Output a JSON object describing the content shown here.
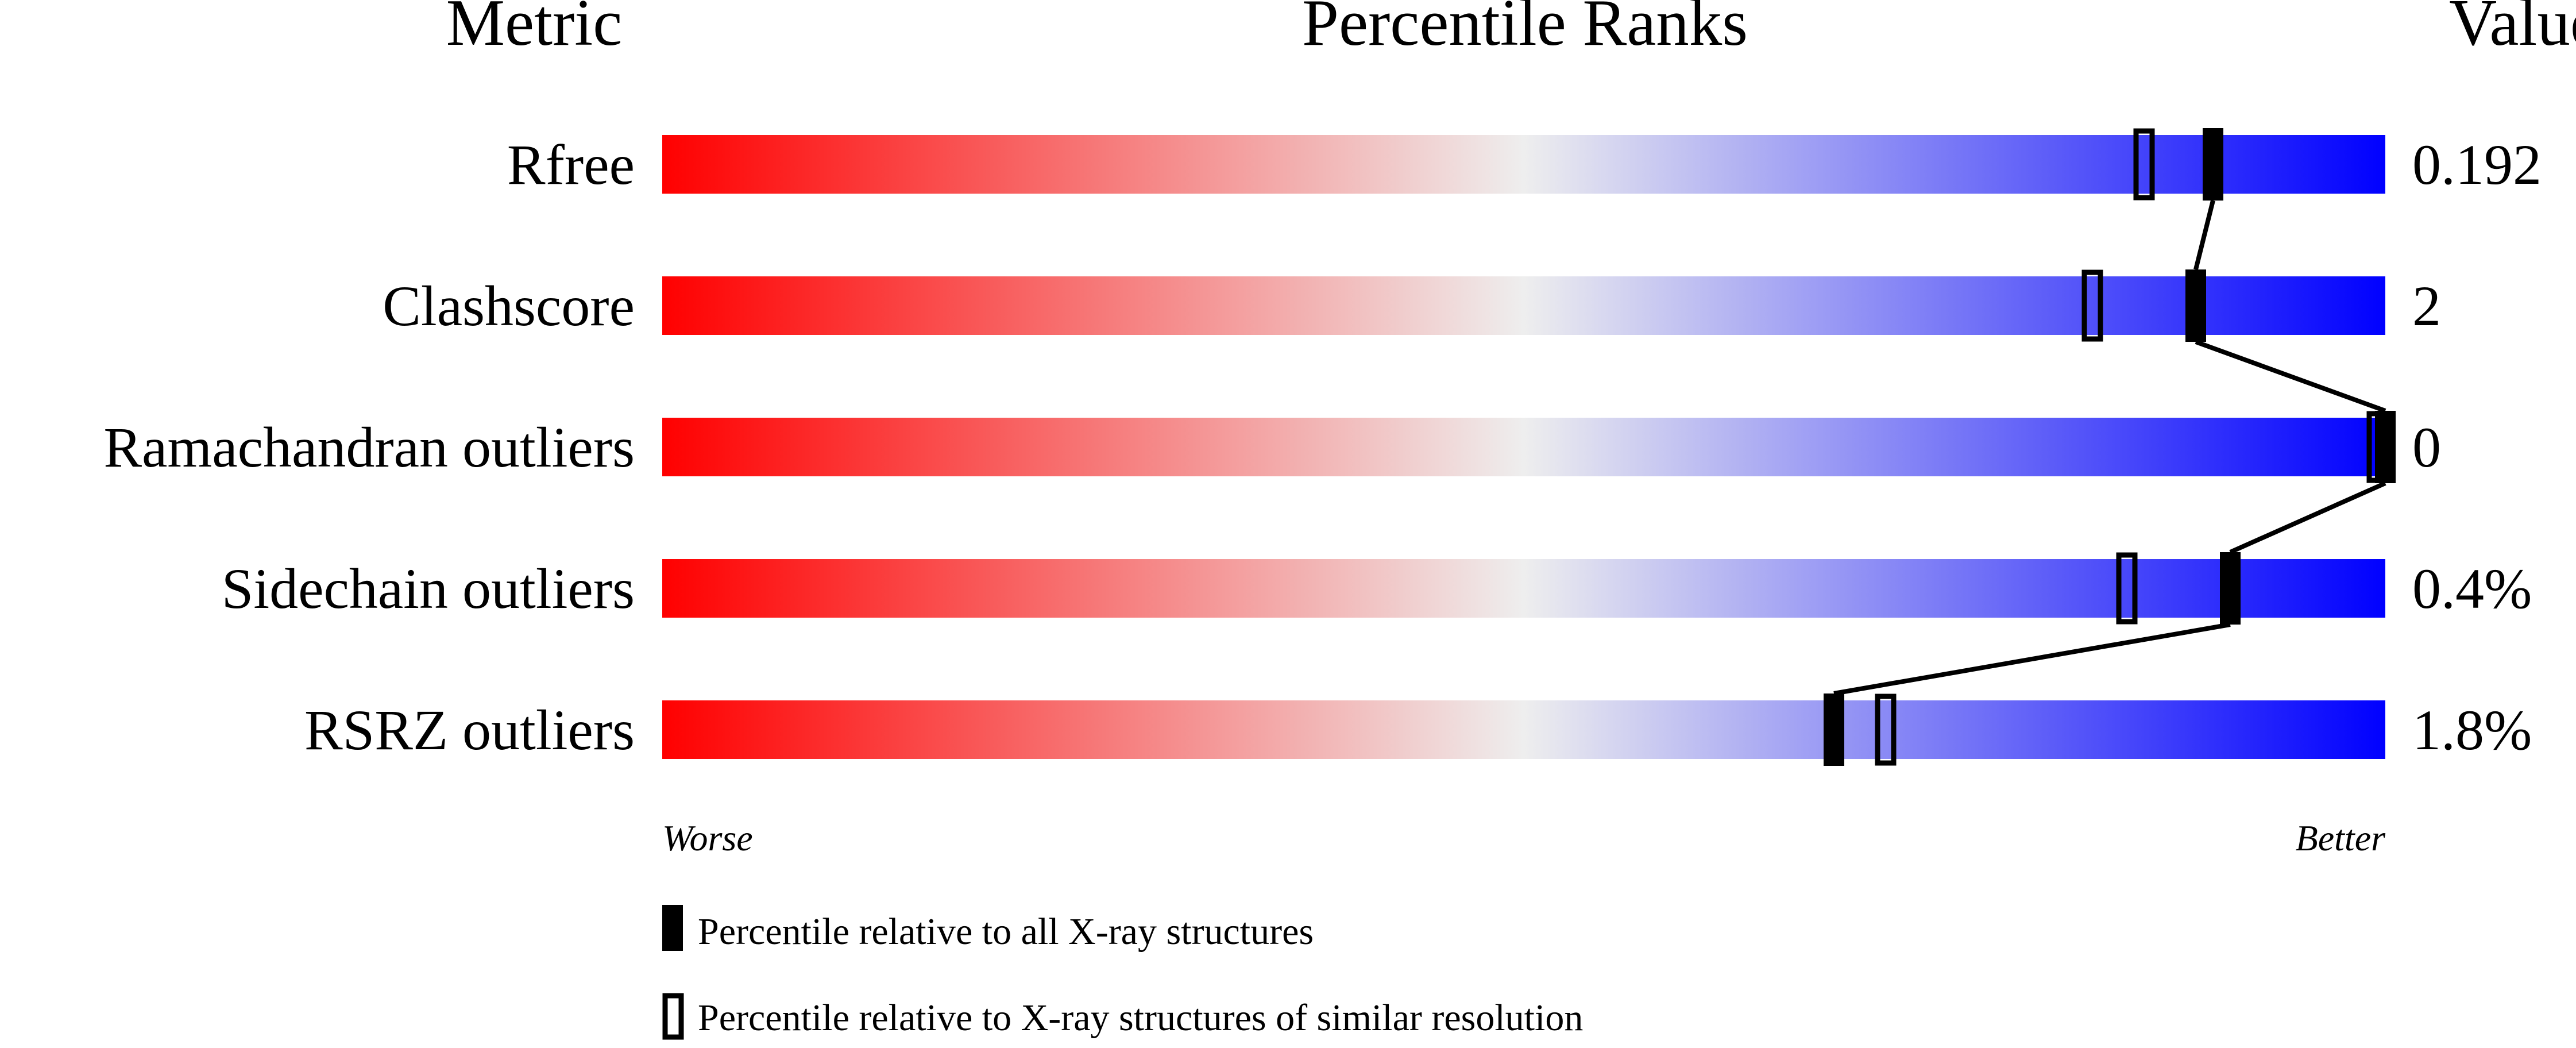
{
  "chart_data": {
    "type": "bar",
    "headers": {
      "metric": "Metric",
      "ranks": "Percentile Ranks",
      "value": "Value"
    },
    "xlim": [
      0,
      100
    ],
    "metrics": [
      {
        "name": "Rfree",
        "value": "0.192",
        "percentile_all": 90,
        "percentile_similar": 86
      },
      {
        "name": "Clashscore",
        "value": "2",
        "percentile_all": 89,
        "percentile_similar": 83
      },
      {
        "name": "Ramachandran outliers",
        "value": "0",
        "percentile_all": 100,
        "percentile_similar": 100
      },
      {
        "name": "Sidechain outliers",
        "value": "0.4%",
        "percentile_all": 91,
        "percentile_similar": 85
      },
      {
        "name": "RSRZ outliers",
        "value": "1.8%",
        "percentile_all": 68,
        "percentile_similar": 71
      }
    ],
    "axis_labels": {
      "left": "Worse",
      "right": "Better"
    },
    "legend": {
      "filled": "Percentile relative to all X-ray structures",
      "open": "Percentile relative to X-ray structures of similar resolution"
    },
    "colors": {
      "worse": "#ff0000",
      "middle": "#eeeeee",
      "better": "#0000ff",
      "marker": "#000000"
    }
  }
}
